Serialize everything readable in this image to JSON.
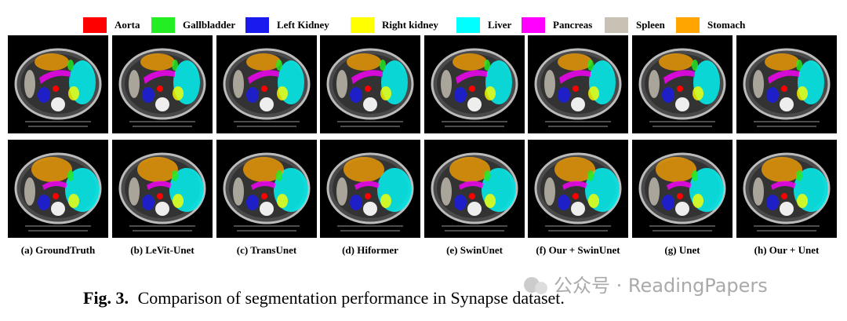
{
  "legend": [
    {
      "label": "Aorta",
      "color": "#ff0000"
    },
    {
      "label": "Gallbladder",
      "color": "#22ee22"
    },
    {
      "label": "Left Kidney",
      "color": "#1a1aee"
    },
    {
      "label": "Right kidney",
      "color": "#ffff00"
    },
    {
      "label": "Liver",
      "color": "#00ffff"
    },
    {
      "label": "Pancreas",
      "color": "#ff00ff"
    },
    {
      "label": "Spleen",
      "color": "#c8c2b4"
    },
    {
      "label": "Stomach",
      "color": "#ffa500"
    }
  ],
  "panels": [
    {
      "caption": "(a) GroundTruth"
    },
    {
      "caption": "(b) LeVit-Unet"
    },
    {
      "caption": "(c) TransUnet"
    },
    {
      "caption": "(d) Hiformer"
    },
    {
      "caption": "(e) SwinUnet"
    },
    {
      "caption": "(f) Our + SwinUnet"
    },
    {
      "caption": "(g) Unet"
    },
    {
      "caption": "(h) Our + Unet"
    }
  ],
  "figure_caption": {
    "label": "Fig. 3.",
    "text": "Comparison of segmentation performance in Synapse dataset."
  },
  "watermark": "公众号 · ReadingPapers"
}
